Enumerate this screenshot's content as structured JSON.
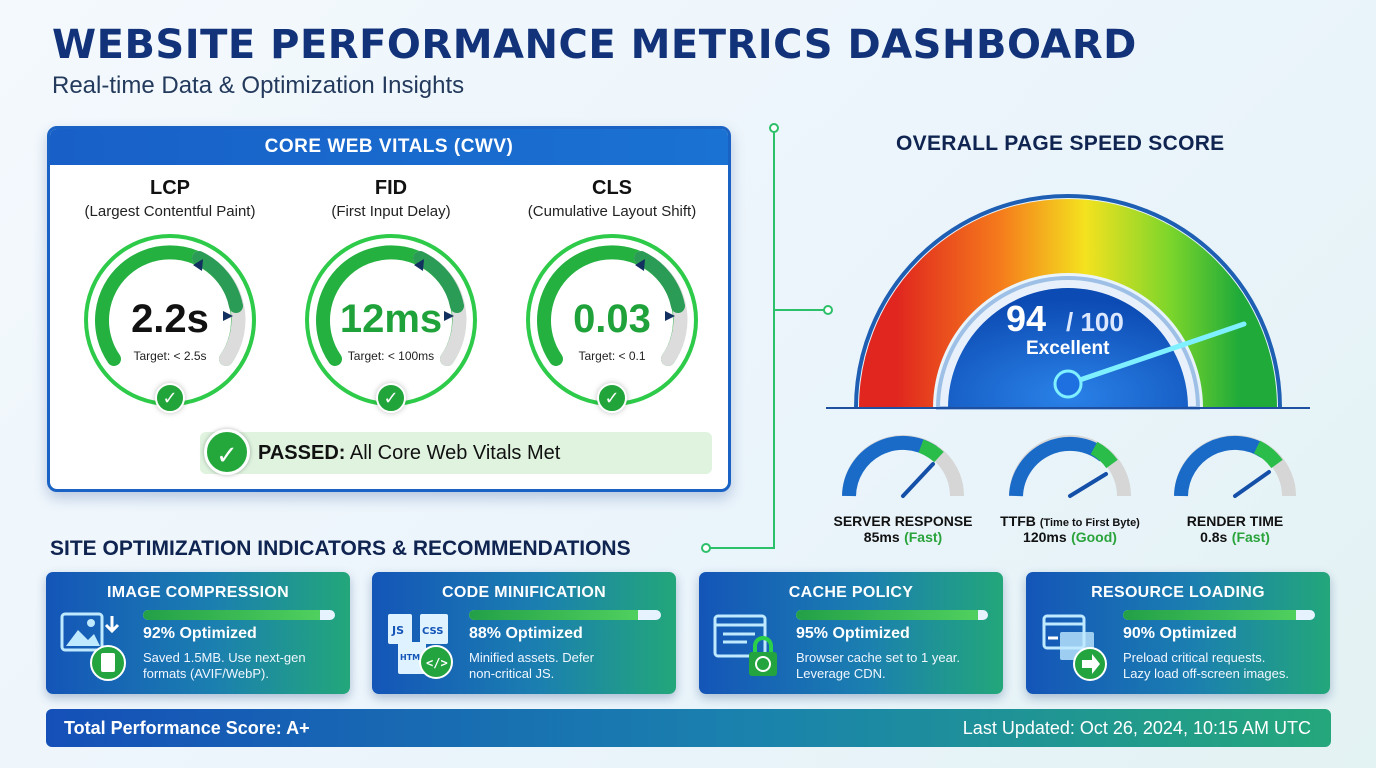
{
  "header": {
    "title": "WEBSITE PERFORMANCE METRICS DASHBOARD",
    "subtitle": "Real-time Data & Optimization Insights"
  },
  "cwv": {
    "title": "CORE WEB VITALS (CWV)",
    "vitals": [
      {
        "name": "LCP",
        "full": "(Largest Contentful Paint)",
        "value": "2.2s",
        "target": "Target: < 2.5s",
        "color": "#111111"
      },
      {
        "name": "FID",
        "full": "(First Input Delay)",
        "value": "12ms",
        "target": "Target: < 100ms",
        "color": "#1fa23a"
      },
      {
        "name": "CLS",
        "full": "(Cumulative Layout Shift)",
        "value": "0.03",
        "target": "Target: < 0.1",
        "color": "#1fa23a"
      }
    ],
    "passed_bold": "PASSED:",
    "passed_text": " All Core Web Vitals Met"
  },
  "speed": {
    "title": "OVERALL PAGE SPEED SCORE",
    "score": "94",
    "max": "/ 100",
    "label": "Excellent",
    "score_value": 94
  },
  "mini_gauges": [
    {
      "name": "SERVER RESPONSE",
      "name_small": "",
      "value": "85ms",
      "quality": "(Fast)",
      "level": 0.72
    },
    {
      "name": "TTFB",
      "name_small": "(Time to First Byte)",
      "value": "120ms",
      "quality": "(Good)",
      "level": 0.62
    },
    {
      "name": "RENDER TIME",
      "name_small": "",
      "value": "0.8s",
      "quality": "(Fast)",
      "level": 0.68
    }
  ],
  "optimization": {
    "title": "SITE OPTIMIZATION INDICATORS & RECOMMENDATIONS",
    "cards": [
      {
        "title": "IMAGE COMPRESSION",
        "percent": 92,
        "pct_label": "92% Optimized",
        "line1": "Saved 1.5MB. Use next-gen",
        "line2": "formats (AVIF/WebP).",
        "icon": "image-icon"
      },
      {
        "title": "CODE MINIFICATION",
        "percent": 88,
        "pct_label": "88% Optimized",
        "line1": "Minified assets. Defer",
        "line2": "non-critical JS.",
        "icon": "code-files-icon"
      },
      {
        "title": "CACHE POLICY",
        "percent": 95,
        "pct_label": "95% Optimized",
        "line1": "Browser cache set to 1 year.",
        "line2": "Leverage CDN.",
        "icon": "browser-lock-icon"
      },
      {
        "title": "RESOURCE LOADING",
        "percent": 90,
        "pct_label": "90% Optimized",
        "line1": "Preload critical requests.",
        "line2": "Lazy load off-screen images.",
        "icon": "load-arrow-icon"
      }
    ]
  },
  "footer": {
    "score": "Total Performance Score: A+",
    "updated": "Last Updated: Oct 26, 2024, 10:15 AM UTC"
  },
  "colors": {
    "primary": "#1860c8",
    "success": "#21a43a",
    "teal": "#25a77b"
  }
}
